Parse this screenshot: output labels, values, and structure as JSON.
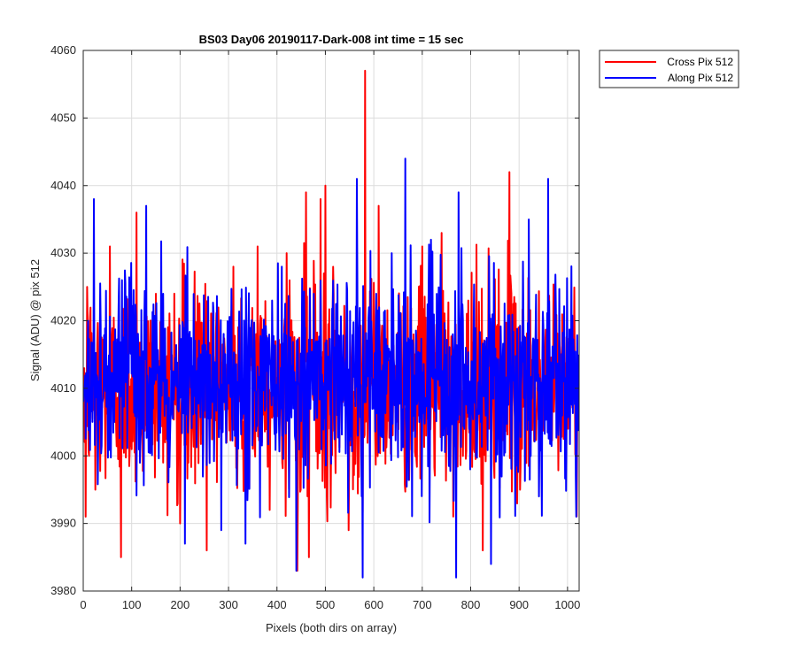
{
  "chart_data": {
    "type": "line",
    "title": "BS03 Day06 20190117-Dark-008 int time = 15 sec",
    "xlabel": "Pixels (both dirs on array)",
    "ylabel": "Signal (ADU) @ pix 512",
    "xlim": [
      0,
      1024
    ],
    "ylim": [
      3980,
      4060
    ],
    "xticks": [
      0,
      100,
      200,
      300,
      400,
      500,
      600,
      700,
      800,
      900,
      1000
    ],
    "yticks": [
      3980,
      3990,
      4000,
      4010,
      4020,
      4030,
      4040,
      4050,
      4060
    ],
    "grid": true,
    "legend_position": "outside-top-right",
    "n_points": 1024,
    "series": [
      {
        "name": "Cross Pix 512",
        "color": "#ff0000",
        "mean": 4010.5,
        "key_points": [
          [
            0,
            4012
          ],
          [
            5,
            3991
          ],
          [
            8,
            4025
          ],
          [
            25,
            3995
          ],
          [
            55,
            4031
          ],
          [
            78,
            3985
          ],
          [
            110,
            4036
          ],
          [
            150,
            4024
          ],
          [
            165,
            3999
          ],
          [
            200,
            3990
          ],
          [
            255,
            3986
          ],
          [
            310,
            4028
          ],
          [
            360,
            4031
          ],
          [
            420,
            4030
          ],
          [
            442,
            3983
          ],
          [
            460,
            4039
          ],
          [
            466,
            3985
          ],
          [
            490,
            4038
          ],
          [
            500,
            4040
          ],
          [
            548,
            3989
          ],
          [
            582,
            4057
          ],
          [
            610,
            4037
          ],
          [
            700,
            4031
          ],
          [
            740,
            4033
          ],
          [
            775,
            4016
          ],
          [
            795,
            4023
          ],
          [
            825,
            3986
          ],
          [
            880,
            4042
          ],
          [
            902,
            3995
          ],
          [
            950,
            4019
          ],
          [
            1023,
            4013
          ]
        ]
      },
      {
        "name": "Along Pix 512",
        "color": "#0000ff",
        "mean": 4011.0,
        "key_points": [
          [
            0,
            4008
          ],
          [
            10,
            4020
          ],
          [
            22,
            4038
          ],
          [
            80,
            4026
          ],
          [
            130,
            4037
          ],
          [
            165,
            4024
          ],
          [
            210,
            3987
          ],
          [
            285,
            3989
          ],
          [
            335,
            3987
          ],
          [
            410,
            4028
          ],
          [
            440,
            3983
          ],
          [
            565,
            4041
          ],
          [
            577,
            3982
          ],
          [
            590,
            4022
          ],
          [
            605,
            4024
          ],
          [
            637,
            4030
          ],
          [
            665,
            4044
          ],
          [
            718,
            4032
          ],
          [
            770,
            3982
          ],
          [
            775,
            4039
          ],
          [
            842,
            4042
          ],
          [
            842,
            3984
          ],
          [
            920,
            4035
          ],
          [
            960,
            4041
          ],
          [
            1018,
            3991
          ],
          [
            1023,
            4015
          ]
        ]
      }
    ]
  }
}
